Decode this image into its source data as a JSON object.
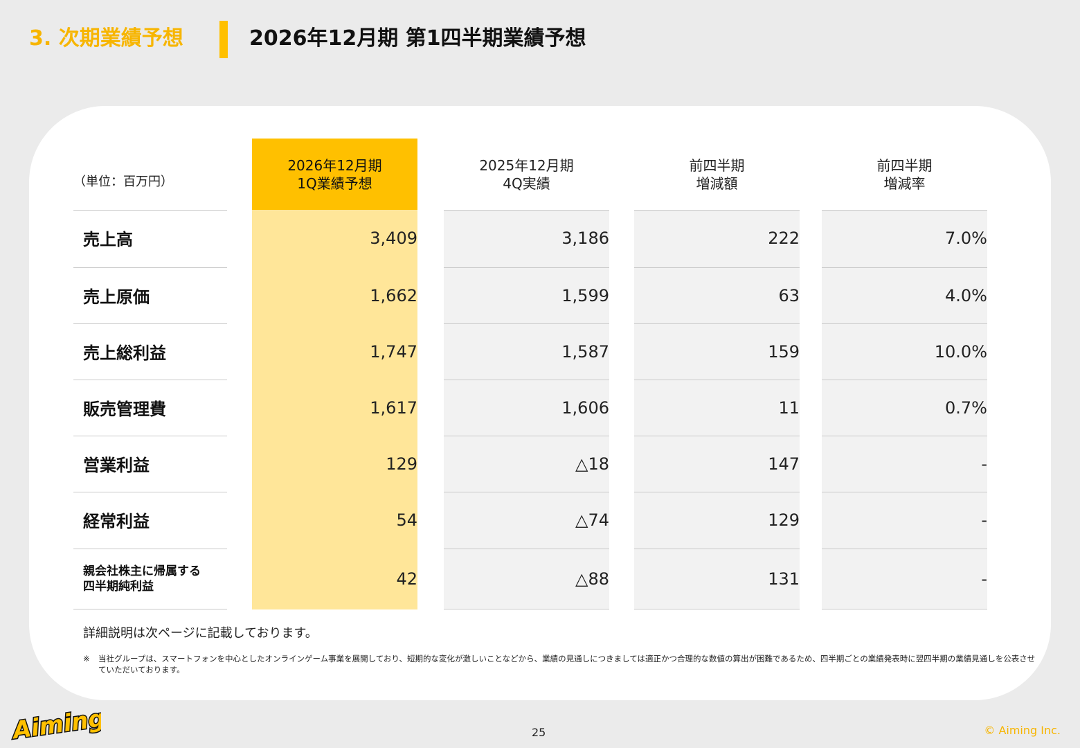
{
  "header": {
    "section": "3. 次期業績予想",
    "title": "2026年12月期 第1四半期業績予想"
  },
  "table": {
    "unit": "（単位：百万円）",
    "columns": [
      {
        "line1": "2026年12月期",
        "line2": "1Q業績予想"
      },
      {
        "line1": "2025年12月期",
        "line2": "4Q実績"
      },
      {
        "line1": "前四半期",
        "line2": "増減額"
      },
      {
        "line1": "前四半期",
        "line2": "増減率"
      }
    ],
    "rows": [
      {
        "label": "売上高",
        "values": [
          "3,409",
          "3,186",
          "222",
          "7.0%"
        ]
      },
      {
        "label": "売上原価",
        "values": [
          "1,662",
          "1,599",
          "63",
          "4.0%"
        ]
      },
      {
        "label": "売上総利益",
        "values": [
          "1,747",
          "1,587",
          "159",
          "10.0%"
        ]
      },
      {
        "label": "販売管理費",
        "values": [
          "1,617",
          "1,606",
          "11",
          "0.7%"
        ]
      },
      {
        "label": "営業利益",
        "values": [
          "129",
          "△18",
          "147",
          "-"
        ]
      },
      {
        "label": "経常利益",
        "values": [
          "54",
          "△74",
          "129",
          "-"
        ]
      },
      {
        "label_line1": "親会社株主に帰属する",
        "label_line2": "四半期純利益",
        "values": [
          "42",
          "△88",
          "131",
          "-"
        ]
      }
    ]
  },
  "notes": {
    "detail": "詳細説明は次ページに記載しております。",
    "mark": "※",
    "disclaimer": "当社グループは、スマートフォンを中心としたオンラインゲーム事業を展開しており、短期的な変化が激しいことなどから、業績の見通しにつきましては適正かつ合理的な数値の算出が困難であるため、四半期ごとの業績発表時に翌四半期の業績見通しを公表させていただいております。"
  },
  "footer": {
    "logo_text": "Aiming",
    "page": "25",
    "copyright": "© Aiming Inc."
  },
  "colors": {
    "accent": "#ffc000",
    "accent_text": "#f7b500",
    "highlight_col": "#ffe699",
    "gray_col": "#f2f2f2",
    "background": "#ebebeb"
  }
}
